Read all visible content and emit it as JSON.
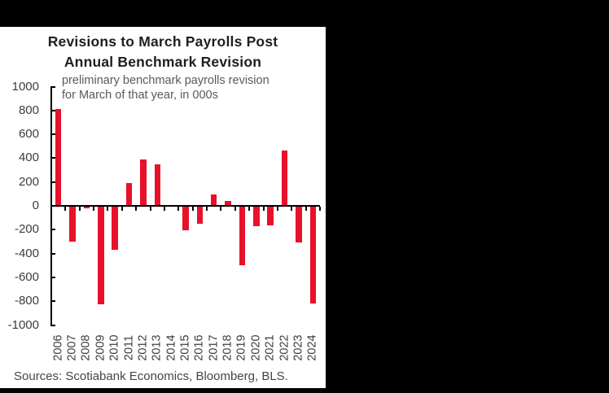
{
  "page": {
    "background_color": "#000000",
    "card_color": "#ffffff"
  },
  "chart_data": {
    "type": "bar",
    "title_lines": [
      "Revisions to March Payrolls Post",
      "Annual Benchmark Revision"
    ],
    "subtitle_lines": [
      "preliminary benchmark payrolls revision",
      "for March of that year, in 000s"
    ],
    "categories": [
      "2006",
      "2007",
      "2008",
      "2009",
      "2010",
      "2011",
      "2012",
      "2013",
      "2014",
      "2015",
      "2016",
      "2017",
      "2018",
      "2019",
      "2020",
      "2021",
      "2022",
      "2023",
      "2024"
    ],
    "values": [
      810,
      -297,
      -21,
      -824,
      -366,
      192,
      386,
      345,
      7,
      -208,
      -150,
      95,
      43,
      -501,
      -173,
      -161,
      462,
      -306,
      -818
    ],
    "xlabel": "",
    "ylabel": "",
    "ylim": [
      -1000,
      1000
    ],
    "y_ticks": [
      1000,
      800,
      600,
      400,
      200,
      0,
      -200,
      -400,
      -600,
      -800,
      -1000
    ],
    "grid": false,
    "legend": false,
    "bar_color": "#e8112a",
    "axis_color": "#000000",
    "source": "Sources: Scotiabank Economics, Bloomberg, BLS."
  }
}
